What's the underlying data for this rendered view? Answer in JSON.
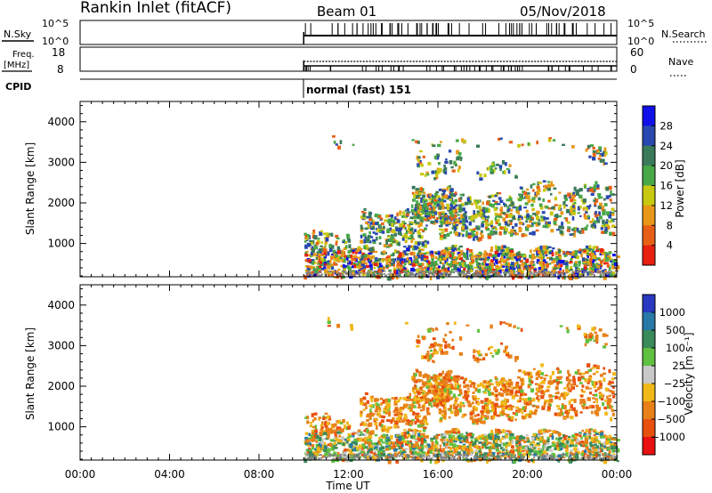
{
  "header": {
    "station": "Rankin Inlet (fitACF)",
    "beam": "Beam 01",
    "date": "05/Nov/2018"
  },
  "status": {
    "nsky_label": "N.Sky",
    "nsky_ticks": [
      "10^5",
      "10^0"
    ],
    "nsearch_label": "N.Search",
    "nsearch_ticks": [
      "10^5",
      "10^0"
    ],
    "freq_label": "Freq.",
    "freq_unit": "[MHz]",
    "freq_ticks": [
      "18",
      "8"
    ],
    "nave_label": "Nave",
    "nave_ticks": [
      "60",
      "0"
    ],
    "cpid_label": "CPID",
    "cpid_value": "normal (fast) 151"
  },
  "chart_data": [
    {
      "type": "heatmap",
      "name": "power",
      "ylabel": "Slant Range [km]",
      "yticks": [
        "1000",
        "2000",
        "3000",
        "4000"
      ],
      "ylim": [
        180,
        4500
      ],
      "xlim": [
        0,
        24
      ],
      "data_start_hour": 10,
      "colorbar": {
        "label": "Power [dB]",
        "ticks": [
          "4",
          "8",
          "12",
          "16",
          "20",
          "24",
          "28"
        ],
        "colors": [
          "#1010e8",
          "#2848b0",
          "#3a7a5a",
          "#48a848",
          "#c8c810",
          "#e89818",
          "#e86018",
          "#e82010"
        ]
      }
    },
    {
      "type": "heatmap",
      "name": "velocity",
      "ylabel": "Slant Range [km]",
      "yticks": [
        "1000",
        "2000",
        "3000",
        "4000"
      ],
      "ylim": [
        180,
        4500
      ],
      "xlim": [
        0,
        24
      ],
      "data_start_hour": 10,
      "colorbar": {
        "label": "Velocity [m s⁻¹]",
        "ticks": [
          "1000",
          "500",
          "100",
          "25",
          "−25",
          "−100",
          "−500",
          "−1000"
        ],
        "colors": [
          "#2838c0",
          "#2878a8",
          "#3a8a5a",
          "#60c040",
          "#c8c8c8",
          "#f0b818",
          "#e88018",
          "#e85010",
          "#e81010"
        ]
      }
    }
  ],
  "xaxis": {
    "ticks": [
      "00:00",
      "04:00",
      "08:00",
      "12:00",
      "16:00",
      "20:00",
      "00:00"
    ],
    "label": "Time UT"
  }
}
